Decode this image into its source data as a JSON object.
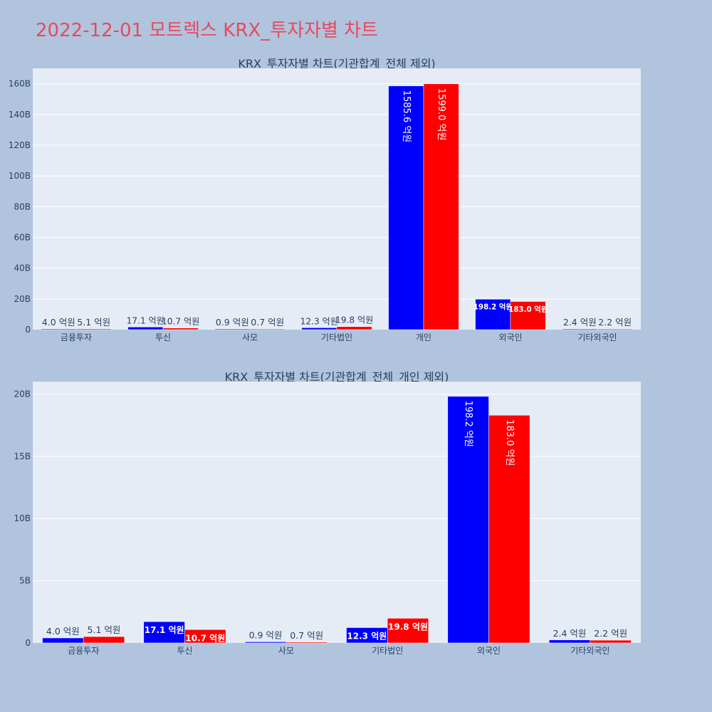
{
  "page": {
    "title": "2022-12-01 모트렉스 KRX_투자자별 차트"
  },
  "chart_data": [
    {
      "type": "bar",
      "title": "KRX_투자자별 차트(기관합계_전체 제외)",
      "categories": [
        "금융투자",
        "투신",
        "사모",
        "기타법인",
        "개인",
        "외국인",
        "기타외국인"
      ],
      "series": [
        {
          "color": "#0000ff",
          "values": [
            0.4,
            1.71,
            0.09,
            1.23,
            158.56,
            19.82,
            0.24
          ],
          "labels": [
            "4.0 억원",
            "17.1 억원",
            "0.9 억원",
            "12.3 억원",
            "1585.6 억원",
            "198.2 억원",
            "2.4 억원"
          ]
        },
        {
          "color": "#ff0000",
          "values": [
            0.51,
            1.07,
            0.07,
            1.98,
            159.9,
            18.3,
            0.22
          ],
          "labels": [
            "5.1 억원",
            "10.7 억원",
            "0.7 억원",
            "19.8 억원",
            "1599.0 억원",
            "183.0 억원",
            "2.2 억원"
          ]
        }
      ],
      "value_unit": "B",
      "ylim": [
        0,
        170
      ],
      "yticks": [
        0,
        20,
        40,
        60,
        80,
        100,
        120,
        140,
        160
      ],
      "ytick_labels": [
        "0",
        "20B",
        "40B",
        "60B",
        "80B",
        "100B",
        "120B",
        "140B",
        "160B"
      ],
      "grid": true
    },
    {
      "type": "bar",
      "title": "KRX_투자자별 차트(기관합계_전체_개인 제외)",
      "categories": [
        "금융투자",
        "투신",
        "사모",
        "기타법인",
        "외국인",
        "기타외국인"
      ],
      "series": [
        {
          "color": "#0000ff",
          "values": [
            0.4,
            1.71,
            0.09,
            1.23,
            19.82,
            0.24
          ],
          "labels": [
            "4.0 억원",
            "17.1 억원",
            "0.9 억원",
            "12.3 억원",
            "198.2 억원",
            "2.4 억원"
          ]
        },
        {
          "color": "#ff0000",
          "values": [
            0.51,
            1.07,
            0.07,
            1.98,
            18.3,
            0.22
          ],
          "labels": [
            "5.1 억원",
            "10.7 억원",
            "0.7 억원",
            "19.8 억원",
            "183.0 억원",
            "2.2 억원"
          ]
        }
      ],
      "value_unit": "B",
      "ylim": [
        0,
        21
      ],
      "yticks": [
        0,
        5,
        10,
        15,
        20
      ],
      "ytick_labels": [
        "0",
        "5B",
        "10B",
        "15B",
        "20B"
      ],
      "grid": true
    }
  ]
}
